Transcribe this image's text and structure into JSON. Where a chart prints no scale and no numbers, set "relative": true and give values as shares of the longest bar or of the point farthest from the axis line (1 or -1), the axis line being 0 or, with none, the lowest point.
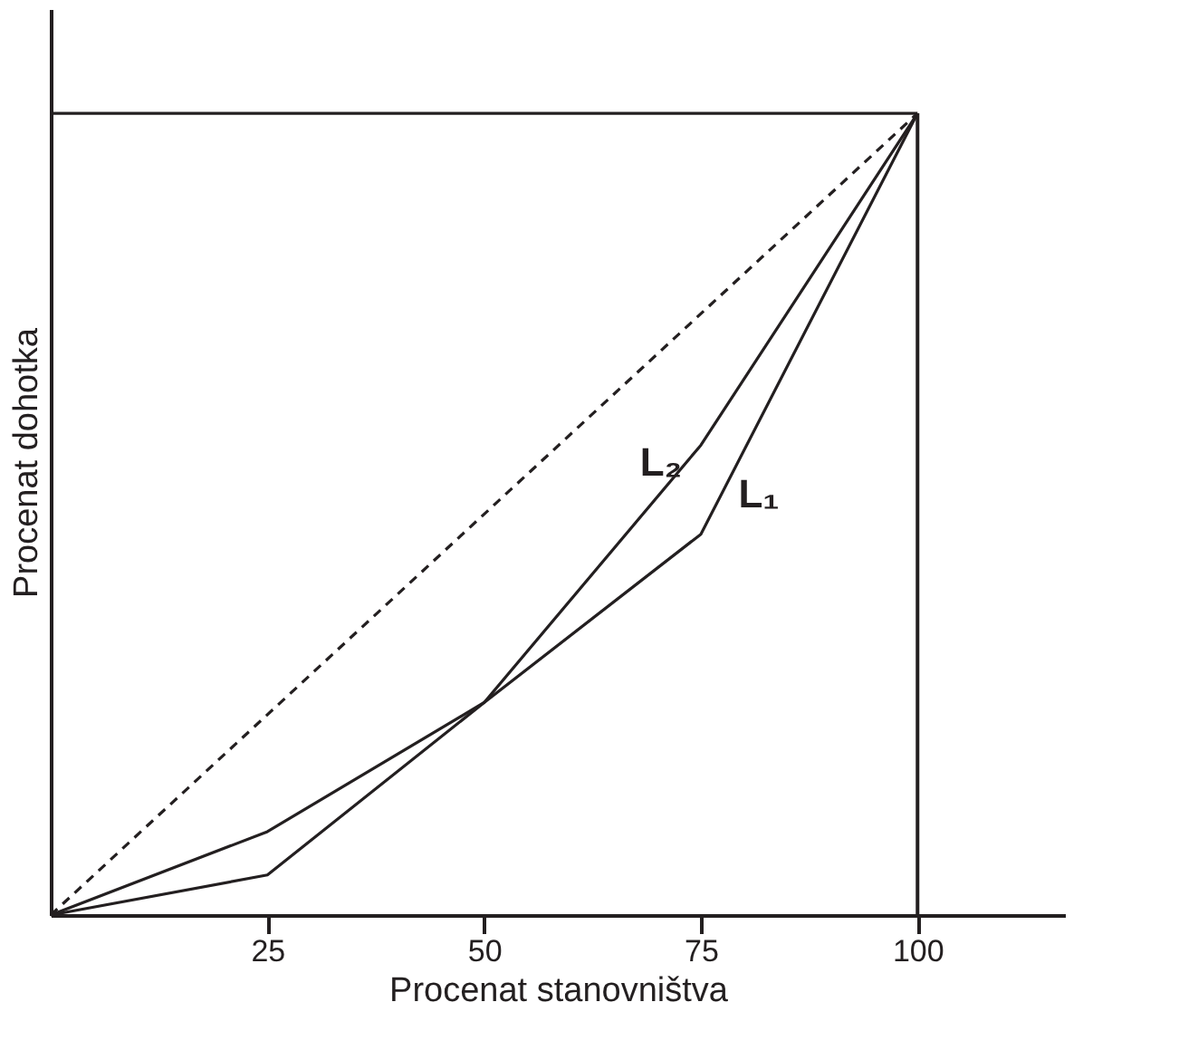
{
  "chart_data": {
    "type": "line",
    "relative": true,
    "xlabel": "Procenat stanovništva",
    "ylabel": "Procenat dohotka",
    "xlim": [
      0,
      117
    ],
    "xticks": [
      25,
      50,
      75,
      100
    ],
    "grid": false,
    "line_style": "solid",
    "marker": "none",
    "series": [
      {
        "x": [
          0,
          100
        ],
        "values": [
          0,
          1
        ],
        "color": "#231f20",
        "line_style": "dashed"
      },
      {
        "name": "L₁",
        "x": [
          0,
          25,
          50,
          75,
          100
        ],
        "values": [
          0,
          0.104,
          0.265,
          0.475,
          1
        ],
        "color": "#231f20"
      },
      {
        "name": "L₂",
        "x": [
          0,
          25,
          50,
          75,
          100
        ],
        "values": [
          0,
          0.05,
          0.265,
          0.586,
          1
        ],
        "color": "#231f20"
      }
    ],
    "ref_lines": [
      {
        "axis": "y",
        "value": 1
      },
      {
        "axis": "x",
        "value": 100
      }
    ]
  }
}
